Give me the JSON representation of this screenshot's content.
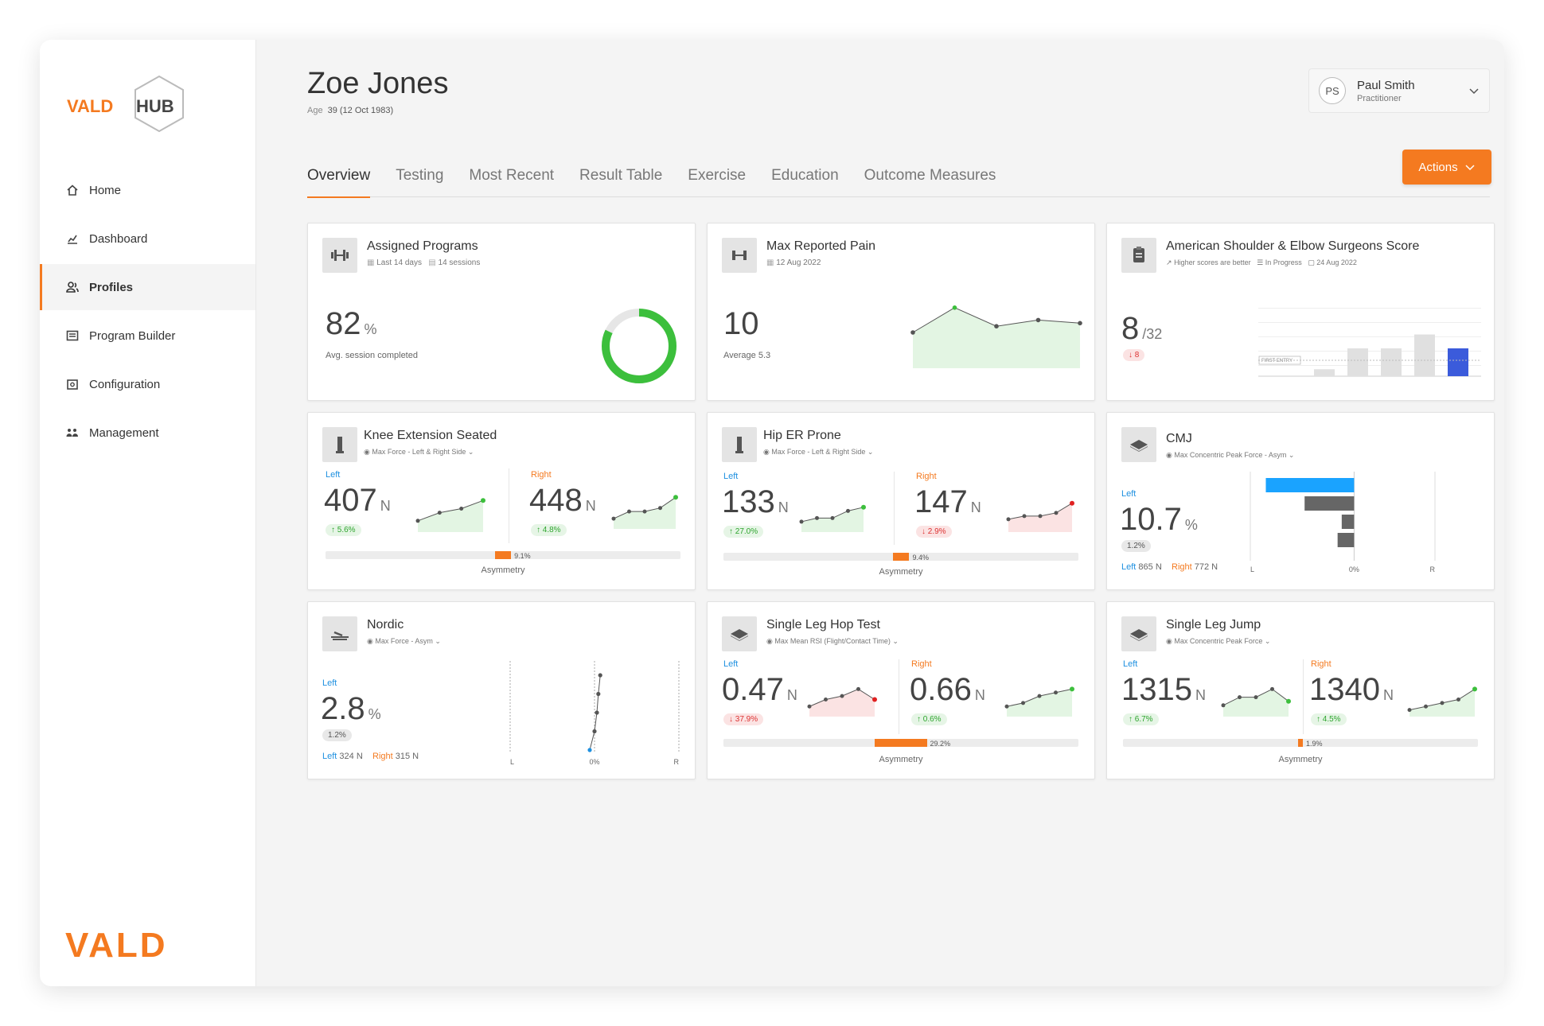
{
  "brand": {
    "logo_left": "VALD",
    "logo_right": "HUB",
    "footer": "VALD",
    "accent": "#f47a20"
  },
  "nav": [
    {
      "label": "Home",
      "icon": "home-icon"
    },
    {
      "label": "Dashboard",
      "icon": "dashboard-icon"
    },
    {
      "label": "Profiles",
      "icon": "profiles-icon"
    },
    {
      "label": "Program Builder",
      "icon": "program-builder-icon"
    },
    {
      "label": "Configuration",
      "icon": "configuration-icon"
    },
    {
      "label": "Management",
      "icon": "management-icon"
    }
  ],
  "patient": {
    "name": "Zoe Jones",
    "age_label": "Age",
    "age_value": "39 (12 Oct 1983)"
  },
  "user": {
    "initials": "PS",
    "name": "Paul Smith",
    "role": "Practitioner"
  },
  "actions_label": "Actions",
  "tabs": [
    "Overview",
    "Testing",
    "Most Recent",
    "Result Table",
    "Exercise",
    "Education",
    "Outcome Measures"
  ],
  "cards": {
    "programs": {
      "title": "Assigned Programs",
      "period": "Last 14 days",
      "sessions": "14 sessions",
      "value": "82",
      "unit": "%",
      "caption": "Avg. session completed",
      "percent": 82
    },
    "pain": {
      "title": "Max Reported Pain",
      "date": "12 Aug 2022",
      "value": "10",
      "caption": "Average  5.3",
      "series": [
        5,
        9,
        6,
        7,
        6.5
      ]
    },
    "ases": {
      "title": "American Shoulder & Elbow Surgeons Score",
      "hint": "Higher scores are better",
      "status": "In Progress",
      "date": "24 Aug 2022",
      "value": "8",
      "total": "/32",
      "change": "8",
      "first_entry": "FIRST ENTRY",
      "bars": [
        2,
        8,
        8,
        12,
        8
      ]
    },
    "knee": {
      "title": "Knee Extension Seated",
      "metric": "Max Force - Left & Right Side",
      "left_label": "Left",
      "left_value": "407",
      "left_unit": "N",
      "left_change": "↑ 5.6%",
      "right_label": "Right",
      "right_value": "448",
      "right_unit": "N",
      "right_change": "↑ 4.8%",
      "asym_value": "9.1%",
      "asym_percent": 9.1,
      "asym_label": "Asymmetry",
      "left_series": [
        2,
        4,
        5,
        7
      ],
      "right_series": [
        2,
        4,
        4,
        5,
        8
      ]
    },
    "hip": {
      "title": "Hip ER Prone",
      "metric": "Max Force - Left & Right Side",
      "left_label": "Left",
      "left_value": "133",
      "left_unit": "N",
      "left_change": "↑ 27.0%",
      "right_label": "Right",
      "right_value": "147",
      "right_unit": "N",
      "right_change": "↓ 2.9%",
      "asym_value": "9.4%",
      "asym_percent": 9.4,
      "asym_label": "Asymmetry",
      "left_series": [
        2,
        3,
        3,
        5,
        6
      ],
      "right_series": [
        3,
        4,
        4,
        5,
        8
      ]
    },
    "cmj": {
      "title": "CMJ",
      "metric": "Max Concentric Peak Force - Asym",
      "left_label": "Left",
      "value": "10.7",
      "unit": "%",
      "badge": "1.2%",
      "left_name": "Left",
      "left_n": "865 N",
      "right_name": "Right",
      "right_n": "772 N",
      "axis_l": "L",
      "axis_0": "0%",
      "axis_r": "R",
      "bars": [
        -10.7,
        -6,
        -1.5,
        -2
      ]
    },
    "nordic": {
      "title": "Nordic",
      "metric": "Max Force - Asym",
      "left_label": "Left",
      "value": "2.8",
      "unit": "%",
      "badge": "1.2%",
      "left_name": "Left",
      "left_n": "324 N",
      "right_name": "Right",
      "right_n": "315 N",
      "axis_l": "L",
      "axis_0": "0%",
      "axis_r": "R",
      "points": [
        -1,
        0,
        0.5,
        0.8,
        1.2
      ]
    },
    "hop": {
      "title": "Single Leg Hop Test",
      "metric": "Max Mean RSI (Flight/Contact Time)",
      "left_label": "Left",
      "left_value": "0.47",
      "left_unit": "N",
      "left_change": "↓ 37.9%",
      "right_label": "Right",
      "right_value": "0.66",
      "right_unit": "N",
      "right_change": "↑ 0.6%",
      "asym_value": "29.2%",
      "asym_percent": 29.2,
      "asym_label": "Asymmetry",
      "left_series": [
        2,
        4,
        5,
        7,
        4
      ],
      "right_series": [
        2,
        3,
        5,
        6,
        7
      ]
    },
    "slj": {
      "title": "Single Leg Jump",
      "metric": "Max Concentric Peak Force",
      "left_label": "Left",
      "left_value": "1315",
      "left_unit": "N",
      "left_change": "↑ 6.7%",
      "right_label": "Right",
      "right_value": "1340",
      "right_unit": "N",
      "right_change": "↑ 4.5%",
      "asym_value": "1.9%",
      "asym_percent": 1.9,
      "asym_label": "Asymmetry",
      "left_series": [
        2,
        4,
        4,
        6,
        3
      ],
      "right_series": [
        1,
        2,
        3,
        4,
        7
      ]
    }
  },
  "colors": {
    "green": "#3cbf3c",
    "red": "#e02020",
    "blue": "#1e90e0",
    "gray_bar": "#666666",
    "ases_bar": "#3b5bdb",
    "cmj_top": "#1aa3ff"
  }
}
